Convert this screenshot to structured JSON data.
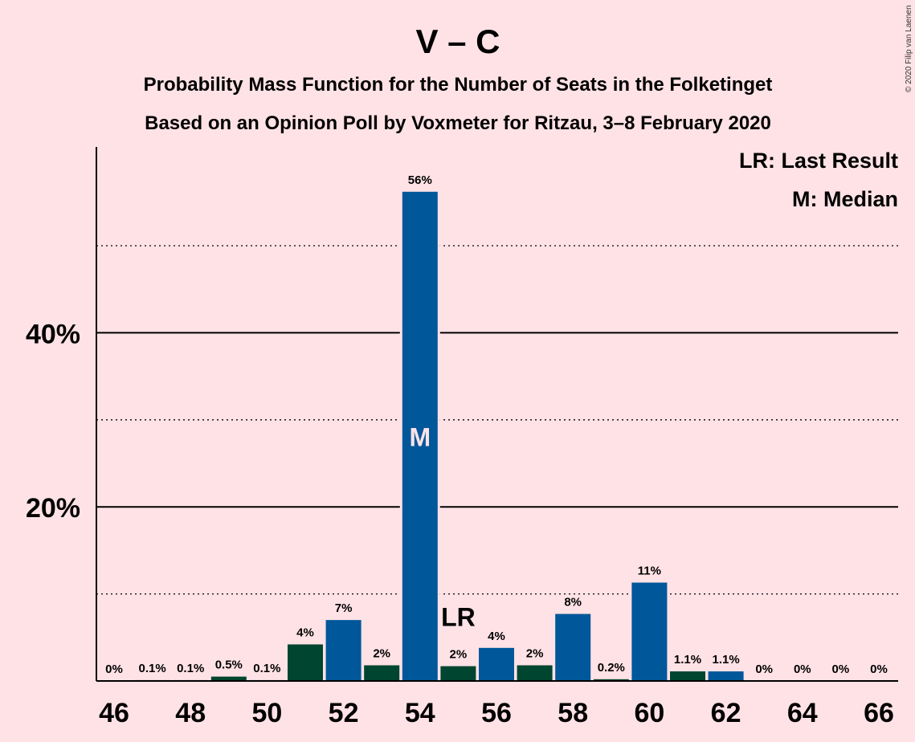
{
  "header": {
    "title": "V – C",
    "subtitle1": "Probability Mass Function for the Number of Seats in the Folketinget",
    "subtitle2": "Based on an Opinion Poll by Voxmeter for Ritzau, 3–8 February 2020",
    "copyright": "© 2020 Filip van Laenen"
  },
  "legend": {
    "last_result": "LR: Last Result",
    "median": "M: Median"
  },
  "markers": {
    "last_result_label": "LR",
    "last_result_seat": 55,
    "median_label": "M",
    "median_seat": 54
  },
  "colors": {
    "background": "#FFE2E6",
    "blue": "#00579A",
    "green": "#00452F"
  },
  "chart_data": {
    "type": "bar",
    "xlabel": "",
    "ylabel": "",
    "ylim": [
      0,
      60
    ],
    "yticks_major": [
      20,
      40
    ],
    "ytick_labels": [
      "20%",
      "40%"
    ],
    "ygrid_minor": [
      10,
      30,
      50
    ],
    "x_tick_values": [
      46,
      48,
      50,
      52,
      54,
      56,
      58,
      60,
      62,
      64,
      66
    ],
    "seats": [
      46,
      47,
      48,
      49,
      50,
      51,
      52,
      53,
      54,
      55,
      56,
      57,
      58,
      59,
      60,
      61,
      62,
      63,
      64,
      65,
      66
    ],
    "values": [
      0,
      0.1,
      0.1,
      0.5,
      0.1,
      4.2,
      7.0,
      1.8,
      56.2,
      1.7,
      3.8,
      1.8,
      7.7,
      0.2,
      11.3,
      1.1,
      1.1,
      0,
      0,
      0,
      0
    ],
    "labels": [
      "0%",
      "0.1%",
      "0.1%",
      "0.5%",
      "0.1%",
      "4%",
      "7%",
      "2%",
      "56%",
      "2%",
      "4%",
      "2%",
      "8%",
      "0.2%",
      "11%",
      "1.1%",
      "1.1%",
      "0%",
      "0%",
      "0%",
      "0%"
    ],
    "bar_colors": [
      "#00452F",
      "#00452F",
      "#00579A",
      "#00452F",
      "#00579A",
      "#00452F",
      "#00579A",
      "#00452F",
      "#00579A",
      "#00452F",
      "#00579A",
      "#00452F",
      "#00579A",
      "#00452F",
      "#00579A",
      "#00452F",
      "#00579A",
      "#00452F",
      "#00579A",
      "#00452F",
      "#00579A"
    ]
  }
}
